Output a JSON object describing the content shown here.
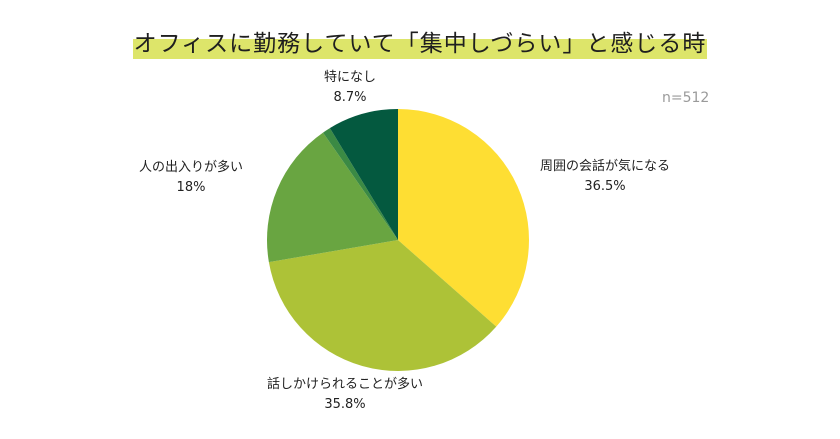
{
  "chart_data": {
    "type": "pie",
    "title": "オフィスに勤務していて「集中しづらい」と感じる時",
    "note": "n=512",
    "slices": [
      {
        "label": "周囲の会話が気になる",
        "value": 36.5,
        "value_label": "36.5%",
        "color": "#fede33"
      },
      {
        "label": "話しかけられることが多い",
        "value": 35.8,
        "value_label": "35.8%",
        "color": "#adc237"
      },
      {
        "label": "人の出入りが多い",
        "value": 18,
        "value_label": "18%",
        "color": "#69a541"
      },
      {
        "label": "",
        "value": 1.0,
        "value_label": "",
        "color": "#3b8a44"
      },
      {
        "label": "特になし",
        "value": 8.7,
        "value_label": "8.7%",
        "color": "#04593f"
      }
    ],
    "start_angle": "12 o'clock",
    "direction": "clockwise"
  }
}
